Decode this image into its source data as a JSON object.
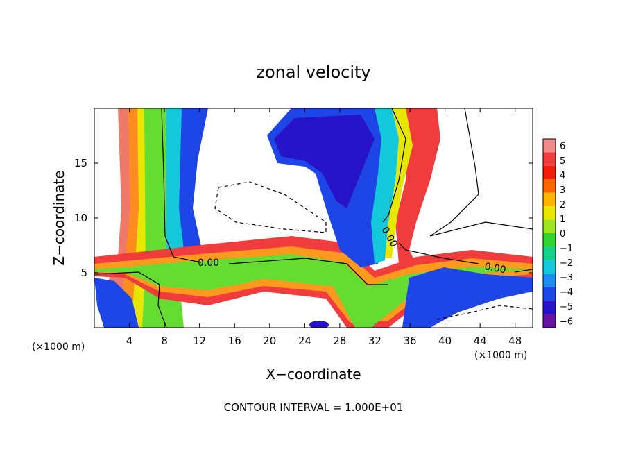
{
  "chart_data": {
    "type": "heatmap",
    "title": "zonal velocity",
    "xlabel": "X−coordinate",
    "ylabel": "Z−coordinate",
    "x_unit_left": "(×1000 m)",
    "x_unit_right": "(×1000 m)",
    "footer": "CONTOUR INTERVAL = 1.000E+01",
    "xlim": [
      0,
      50
    ],
    "ylim": [
      0,
      20
    ],
    "xticks": [
      4,
      8,
      12,
      16,
      20,
      24,
      28,
      32,
      36,
      40,
      44,
      48
    ],
    "yticks": [
      5,
      10,
      15
    ],
    "colorbar": {
      "levels": [
        6,
        5,
        4,
        3,
        2,
        1,
        0,
        -1,
        -2,
        -3,
        -4,
        -5,
        -6
      ],
      "colors": [
        "#f08c8c",
        "#f03c3c",
        "#f01e0a",
        "#ff6400",
        "#ffb400",
        "#e6e600",
        "#a0e61e",
        "#32d232",
        "#14d28c",
        "#14c8dc",
        "#1e8cf0",
        "#1e46e6",
        "#2814c8",
        "#6414a0"
      ]
    },
    "contour_labels": [
      {
        "text": "0.00",
        "x": 12.9,
        "y": 5.7
      },
      {
        "text": "0.00",
        "x": 34.3,
        "y": 8.6
      },
      {
        "text": "0.00",
        "x": 46.0,
        "y": 5.5
      }
    ]
  }
}
